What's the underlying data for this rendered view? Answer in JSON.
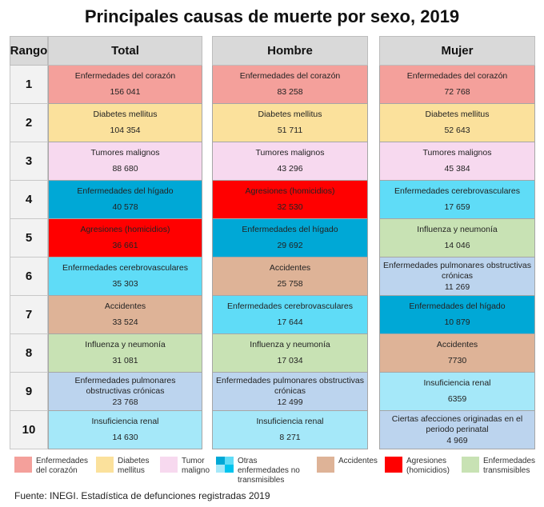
{
  "title": "Principales causas de muerte por sexo, 2019",
  "headers": {
    "rank": "Rango",
    "total": "Total",
    "hombre": "Hombre",
    "mujer": "Mujer"
  },
  "colors": {
    "corazon": "#f4a09b",
    "diabetes": "#fbe19c",
    "tumores": "#f7d9ef",
    "higado": "#00a8d6",
    "cerebro": "#5fdcf7",
    "pulmonar": "#bcd4ee",
    "renal": "#a5e8f9",
    "perinatal": "#bcd4ee",
    "accidentes": "#deb397",
    "agresiones": "#ff0000",
    "influenza": "#c8e2b4"
  },
  "ranks": [
    "1",
    "2",
    "3",
    "4",
    "5",
    "6",
    "7",
    "8",
    "9",
    "10"
  ],
  "total": [
    {
      "name": "Enfermedades del corazón",
      "value": "156 041",
      "cat": "corazon"
    },
    {
      "name": "Diabetes mellitus",
      "value": "104 354",
      "cat": "diabetes"
    },
    {
      "name": "Tumores malignos",
      "value": "88 680",
      "cat": "tumores"
    },
    {
      "name": "Enfermedades del hígado",
      "value": "40 578",
      "cat": "higado"
    },
    {
      "name": "Agresiones (homicidios)",
      "value": "36 661",
      "cat": "agresiones"
    },
    {
      "name": "Enfermedades cerebrovasculares",
      "value": "35 303",
      "cat": "cerebro"
    },
    {
      "name": "Accidentes",
      "value": "33 524",
      "cat": "accidentes"
    },
    {
      "name": "Influenza y neumonía",
      "value": "31 081",
      "cat": "influenza"
    },
    {
      "name": "Enfermedades pulmonares obstructivas crónicas",
      "value": "23 768",
      "cat": "pulmonar"
    },
    {
      "name": "Insuficiencia renal",
      "value": "14 630",
      "cat": "renal"
    }
  ],
  "hombre": [
    {
      "name": "Enfermedades del corazón",
      "value": "83 258",
      "cat": "corazon"
    },
    {
      "name": "Diabetes mellitus",
      "value": "51 711",
      "cat": "diabetes"
    },
    {
      "name": "Tumores malignos",
      "value": "43 296",
      "cat": "tumores"
    },
    {
      "name": "Agresiones (homicidios)",
      "value": "32 530",
      "cat": "agresiones"
    },
    {
      "name": "Enfermedades del hígado",
      "value": "29 692",
      "cat": "higado"
    },
    {
      "name": "Accidentes",
      "value": "25 758",
      "cat": "accidentes"
    },
    {
      "name": "Enfermedades cerebrovasculares",
      "value": "17 644",
      "cat": "cerebro"
    },
    {
      "name": "Influenza y neumonía",
      "value": "17 034",
      "cat": "influenza"
    },
    {
      "name": "Enfermedades pulmonares obstructivas crónicas",
      "value": "12 499",
      "cat": "pulmonar"
    },
    {
      "name": "Insuficiencia renal",
      "value": "8 271",
      "cat": "renal"
    }
  ],
  "mujer": [
    {
      "name": "Enfermedades del corazón",
      "value": "72 768",
      "cat": "corazon"
    },
    {
      "name": "Diabetes mellitus",
      "value": "52 643",
      "cat": "diabetes"
    },
    {
      "name": "Tumores malignos",
      "value": "45 384",
      "cat": "tumores"
    },
    {
      "name": "Enfermedades cerebrovasculares",
      "value": "17 659",
      "cat": "cerebro"
    },
    {
      "name": "Influenza y neumonía",
      "value": "14 046",
      "cat": "influenza"
    },
    {
      "name": "Enfermedades pulmonares obstructivas crónicas",
      "value": "11 269",
      "cat": "pulmonar"
    },
    {
      "name": "Enfermedades del hígado",
      "value": "10 879",
      "cat": "higado"
    },
    {
      "name": "Accidentes",
      "value": "7730",
      "cat": "accidentes"
    },
    {
      "name": "Insuficiencia renal",
      "value": "6359",
      "cat": "renal"
    },
    {
      "name": "Ciertas afecciones originadas en el periodo perinatal",
      "value": "4 969",
      "cat": "perinatal"
    }
  ],
  "legend": [
    {
      "label": "Enfermedades del corazón",
      "color": "#f4a09b"
    },
    {
      "label": "Diabetes mellitus",
      "color": "#fbe19c"
    },
    {
      "label": "Tumor maligno",
      "color": "#f7d9ef"
    },
    {
      "label": "Otras enfermedades no transmisibles",
      "colors": [
        "#00a8d6",
        "#5fdcf7",
        "#a5e8f9",
        "#00c4ee"
      ]
    },
    {
      "label": "Accidentes",
      "color": "#deb397"
    },
    {
      "label": "Agresiones (homicidios)",
      "color": "#ff0000"
    },
    {
      "label": "Enfermedades transmisibles",
      "color": "#c8e2b4"
    }
  ],
  "source": "Fuente: INEGI. Estadística de defunciones registradas 2019"
}
